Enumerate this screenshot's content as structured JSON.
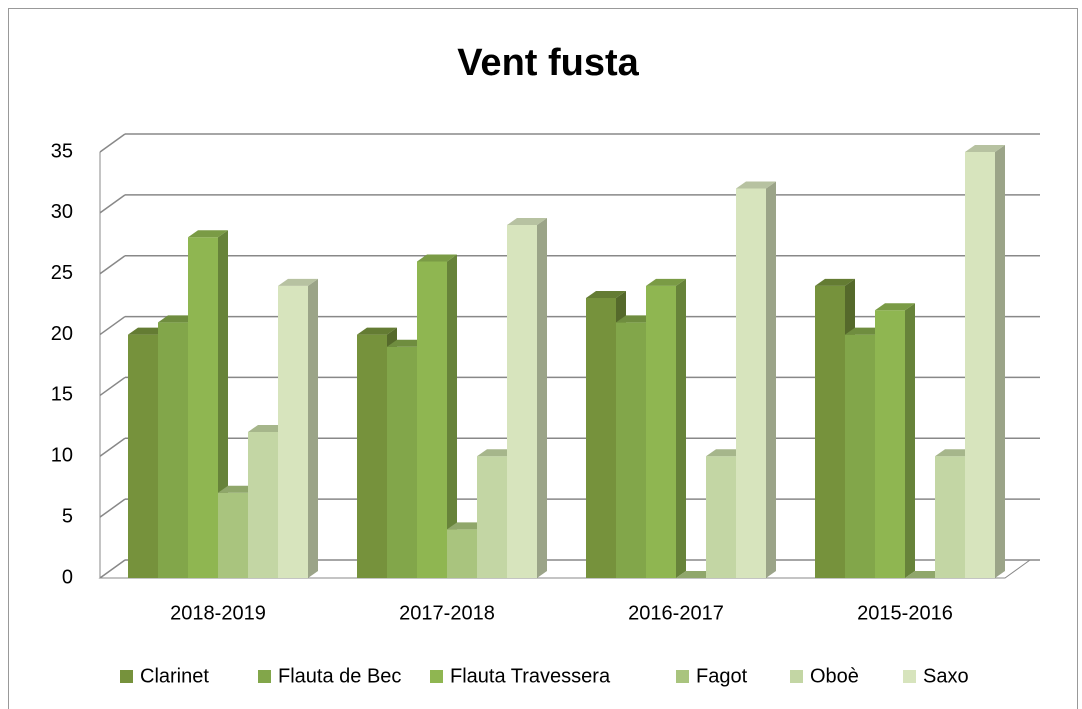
{
  "chart_data": {
    "type": "bar3d",
    "title": "Vent fusta",
    "categories": [
      "2018-2019",
      "2017-2018",
      "2016-2017",
      "2015-2016"
    ],
    "series": [
      {
        "name": "Clarinet",
        "color": "#76923c",
        "values": [
          20,
          20,
          23,
          24
        ]
      },
      {
        "name": "Flauta de Bec",
        "color": "#82a64a",
        "values": [
          21,
          19,
          21,
          20
        ]
      },
      {
        "name": "Flauta Travessera",
        "color": "#8fb651",
        "values": [
          28,
          26,
          24,
          22
        ]
      },
      {
        "name": "Fagot",
        "color": "#a9c47e",
        "values": [
          7,
          4,
          0,
          0
        ]
      },
      {
        "name": "Oboè",
        "color": "#c3d6a4",
        "values": [
          12,
          10,
          10,
          10
        ]
      },
      {
        "name": "Saxo",
        "color": "#d7e4bd",
        "values": [
          24,
          29,
          32,
          35
        ]
      }
    ],
    "ylim": [
      0,
      35
    ],
    "yticks": [
      0,
      5,
      10,
      15,
      20,
      25,
      30,
      35
    ],
    "grid": true,
    "legend": "bottom"
  }
}
